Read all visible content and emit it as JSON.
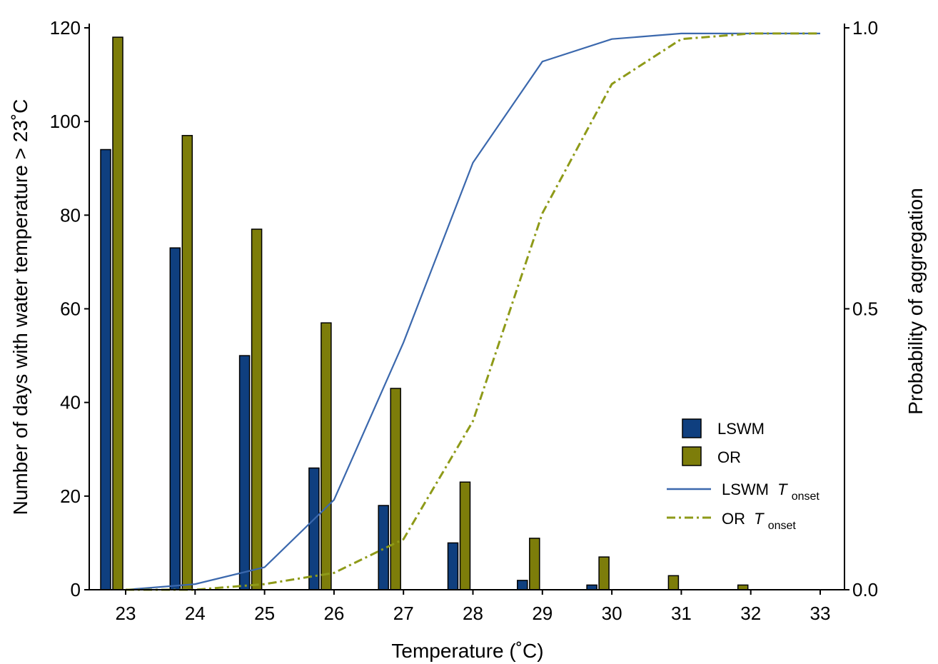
{
  "chart_data": {
    "type": "bar",
    "categories": [
      "23",
      "24",
      "25",
      "26",
      "27",
      "28",
      "29",
      "30",
      "31",
      "32",
      "33"
    ],
    "xlabel": "Temperature (˚C)",
    "ylabel": "Number of days with water temperature  > 23˚C",
    "y2label": "Probability of aggregation",
    "ylim": [
      0,
      120
    ],
    "y2lim": [
      0,
      1
    ],
    "yticks": [
      "0",
      "20",
      "40",
      "60",
      "80",
      "100",
      "120"
    ],
    "y2ticks": [
      "0.0",
      "0.5",
      "1.0"
    ],
    "legend_position": "right-center",
    "series": [
      {
        "name": "LSWM",
        "kind": "bar",
        "color": "#0f3f7f",
        "values": [
          94,
          73,
          50,
          26,
          18,
          10,
          2,
          1,
          0,
          0,
          0
        ]
      },
      {
        "name": "OR",
        "kind": "bar",
        "color": "#7d7d0a",
        "values": [
          118,
          97,
          77,
          57,
          43,
          23,
          11,
          7,
          3,
          1,
          0
        ]
      }
    ],
    "lines": [
      {
        "name": "LSWM",
        "subscript": "onset",
        "style": "solid",
        "color": "#3b68ad",
        "x": [
          23,
          24,
          25,
          26,
          27,
          28,
          29,
          30,
          31,
          32,
          33
        ],
        "y": [
          0.0,
          0.01,
          0.04,
          0.16,
          0.44,
          0.76,
          0.94,
          0.98,
          0.99,
          0.99,
          0.99
        ]
      },
      {
        "name": "OR",
        "subscript": "onset",
        "style": "dashdot",
        "color": "#8e9a18",
        "x": [
          23,
          24,
          25,
          26,
          27,
          28,
          29,
          30,
          31,
          32,
          33
        ],
        "y": [
          0.0,
          0.0,
          0.01,
          0.03,
          0.09,
          0.3,
          0.67,
          0.9,
          0.98,
          0.99,
          0.99
        ]
      }
    ]
  }
}
